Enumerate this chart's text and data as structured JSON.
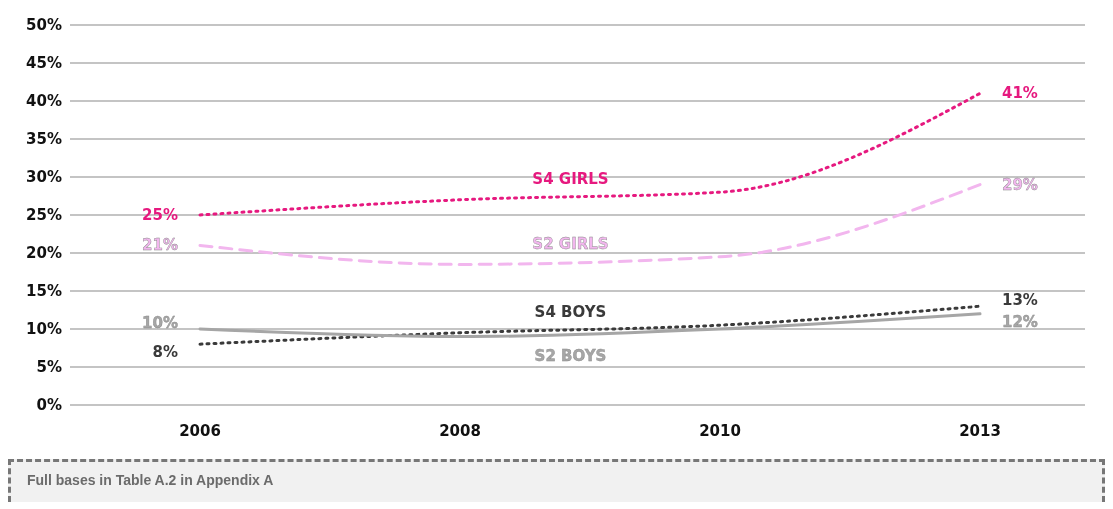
{
  "chart_data": {
    "type": "line",
    "categories": [
      "2006",
      "2008",
      "2010",
      "2013"
    ],
    "series": [
      {
        "name": "S4 GIRLS",
        "color": "#e6197f",
        "line_style": "dotted",
        "values": [
          25,
          27,
          28,
          41
        ],
        "value_labels": [
          "25%",
          null,
          null,
          "41%"
        ]
      },
      {
        "name": "S2 GIRLS",
        "color": "#f2b6ee",
        "line_style": "dashed",
        "values": [
          21,
          18.5,
          19.5,
          29
        ],
        "value_labels": [
          "21%",
          null,
          null,
          "29%"
        ]
      },
      {
        "name": "S4 BOYS",
        "color": "#3a3a3a",
        "line_style": "dotted",
        "values": [
          8,
          9.5,
          10.5,
          13
        ],
        "value_labels": [
          "8%",
          null,
          null,
          "13%"
        ]
      },
      {
        "name": "S2 BOYS",
        "color": "#a6a6a6",
        "line_style": "solid",
        "values": [
          10,
          9,
          10,
          12
        ],
        "value_labels": [
          "10%",
          null,
          null,
          "12%"
        ]
      }
    ],
    "ylim": [
      0,
      50
    ],
    "yticks": [
      {
        "value": 0,
        "label": "0%"
      },
      {
        "value": 5,
        "label": "5%"
      },
      {
        "value": 10,
        "label": "10%"
      },
      {
        "value": 15,
        "label": "15%"
      },
      {
        "value": 20,
        "label": "20%"
      },
      {
        "value": 25,
        "label": "25%"
      },
      {
        "value": 30,
        "label": "30%"
      },
      {
        "value": 35,
        "label": "35%"
      },
      {
        "value": 40,
        "label": "40%"
      },
      {
        "value": 45,
        "label": "45%"
      },
      {
        "value": 50,
        "label": "50%"
      }
    ],
    "grid": "y",
    "legend": false,
    "marker": "none",
    "annotations": [
      "Full bases in Table A.2 in Appendix A"
    ]
  }
}
